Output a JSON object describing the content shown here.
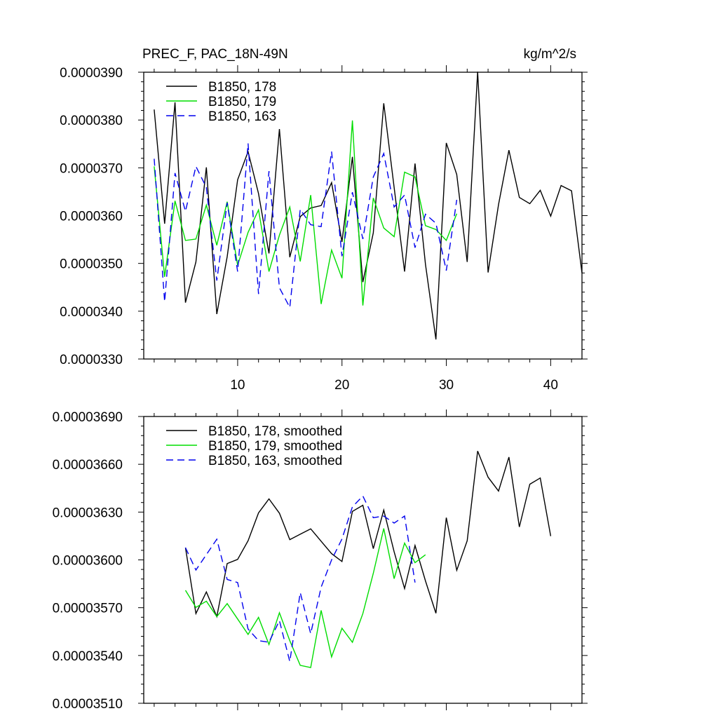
{
  "title_left": "PREC_F, PAC_18N-49N",
  "title_right": "kg/m^2/s",
  "chart_data": [
    {
      "type": "line",
      "xlim": [
        1,
        43
      ],
      "ylim": [
        3.3e-05,
        3.9e-05
      ],
      "x_ticks": [
        10,
        20,
        30,
        40
      ],
      "y_ticks": [
        3.3e-05,
        3.4e-05,
        3.5e-05,
        3.6e-05,
        3.7e-05,
        3.8e-05,
        3.9e-05
      ],
      "y_tick_labels": [
        "0.0000330",
        "0.0000340",
        "0.0000350",
        "0.0000360",
        "0.0000370",
        "0.0000380",
        "0.0000390"
      ],
      "legend_position": "top-left",
      "series": [
        {
          "name": "B1850, 178",
          "color": "#000000",
          "dash": "solid",
          "x_start": 2,
          "values": [
            3.822e-05,
            3.583e-05,
            3.837e-05,
            3.418e-05,
            3.503e-05,
            3.701e-05,
            3.394e-05,
            3.514e-05,
            3.675e-05,
            3.734e-05,
            3.646e-05,
            3.521e-05,
            3.781e-05,
            3.513e-05,
            3.598e-05,
            3.616e-05,
            3.621e-05,
            3.669e-05,
            3.545e-05,
            3.723e-05,
            3.461e-05,
            3.564e-05,
            3.835e-05,
            3.659e-05,
            3.483e-05,
            3.709e-05,
            3.498e-05,
            3.341e-05,
            3.752e-05,
            3.686e-05,
            3.503e-05,
            3.901e-05,
            3.481e-05,
            3.623e-05,
            3.737e-05,
            3.638e-05,
            3.625e-05,
            3.653e-05,
            3.599e-05,
            3.663e-05,
            3.652e-05,
            3.48e-05
          ]
        },
        {
          "name": "B1850, 179",
          "color": "#00dd00",
          "dash": "solid",
          "x_start": 2,
          "values": [
            3.703e-05,
            3.472e-05,
            3.631e-05,
            3.548e-05,
            3.551e-05,
            3.622e-05,
            3.538e-05,
            3.629e-05,
            3.496e-05,
            3.565e-05,
            3.612e-05,
            3.483e-05,
            3.559e-05,
            3.618e-05,
            3.504e-05,
            3.643e-05,
            3.415e-05,
            3.528e-05,
            3.469e-05,
            3.799e-05,
            3.412e-05,
            3.637e-05,
            3.574e-05,
            3.556e-05,
            3.691e-05,
            3.681e-05,
            3.579e-05,
            3.571e-05,
            3.548e-05,
            3.604e-05
          ]
        },
        {
          "name": "B1850, 163",
          "color": "#0000ee",
          "dash": "dashed",
          "x_start": 2,
          "values": [
            3.719e-05,
            3.42e-05,
            3.689e-05,
            3.609e-05,
            3.703e-05,
            3.659e-05,
            3.464e-05,
            3.627e-05,
            3.483e-05,
            3.751e-05,
            3.436e-05,
            3.693e-05,
            3.449e-05,
            3.408e-05,
            3.613e-05,
            3.581e-05,
            3.577e-05,
            3.734e-05,
            3.515e-05,
            3.649e-05,
            3.551e-05,
            3.681e-05,
            3.73e-05,
            3.618e-05,
            3.643e-05,
            3.533e-05,
            3.603e-05,
            3.584e-05,
            3.485e-05,
            3.633e-05
          ]
        }
      ]
    },
    {
      "type": "line",
      "xlim": [
        1,
        43
      ],
      "ylim": [
        3.51e-05,
        3.69e-05
      ],
      "y_ticks": [
        3.51e-05,
        3.54e-05,
        3.57e-05,
        3.6e-05,
        3.63e-05,
        3.66e-05,
        3.69e-05
      ],
      "y_tick_labels": [
        "0.00003510",
        "0.00003540",
        "0.00003570",
        "0.00003600",
        "0.00003630",
        "0.00003660",
        "0.00003690"
      ],
      "legend_position": "top-left",
      "series": [
        {
          "name": "B1850, 178, smoothed",
          "color": "#000000",
          "dash": "solid",
          "x_start": 5,
          "values": [
            3.6077e-05,
            3.5663e-05,
            3.5799e-05,
            3.5644e-05,
            3.5977e-05,
            3.6003e-05,
            3.612e-05,
            3.6295e-05,
            3.6383e-05,
            3.6293e-05,
            3.6127e-05,
            3.6161e-05,
            3.6195e-05,
            3.6117e-05,
            3.6039e-05,
            3.599e-05,
            3.6304e-05,
            3.6343e-05,
            3.6071e-05,
            3.6313e-05,
            3.6051e-05,
            3.582e-05,
            3.609e-05,
            3.5868e-05,
            3.5665e-05,
            3.6265e-05,
            3.5935e-05,
            3.612e-05,
            3.6683e-05,
            3.6519e-05,
            3.6432e-05,
            3.6645e-05,
            3.6207e-05,
            3.6475e-05,
            3.6514e-05,
            3.6149e-05
          ]
        },
        {
          "name": "B1850, 179, smoothed",
          "color": "#00dd00",
          "dash": "solid",
          "x_start": 5,
          "values": [
            3.5809e-05,
            3.5702e-05,
            3.5741e-05,
            3.5644e-05,
            3.5726e-05,
            3.5629e-05,
            3.5532e-05,
            3.5639e-05,
            3.5469e-05,
            3.5668e-05,
            3.5493e-05,
            3.5338e-05,
            3.5324e-05,
            3.5683e-05,
            3.5391e-05,
            3.5571e-05,
            3.5483e-05,
            3.5663e-05,
            3.5916e-05,
            3.6197e-05,
            3.5882e-05,
            3.6105e-05,
            3.5983e-05,
            3.6032e-05
          ]
        },
        {
          "name": "B1850, 163, smoothed",
          "color": "#0000ee",
          "dash": "dashed",
          "x_start": 5,
          "values": [
            3.6077e-05,
            3.5936e-05,
            3.6033e-05,
            3.613e-05,
            3.5877e-05,
            3.5858e-05,
            3.5566e-05,
            3.5493e-05,
            3.5483e-05,
            3.5619e-05,
            3.5362e-05,
            3.5795e-05,
            3.5537e-05,
            3.5829e-05,
            3.6e-05,
            3.6131e-05,
            3.6333e-05,
            3.6401e-05,
            3.6265e-05,
            3.6275e-05,
            3.6231e-05,
            3.6275e-05,
            3.5858e-05
          ]
        }
      ]
    }
  ]
}
